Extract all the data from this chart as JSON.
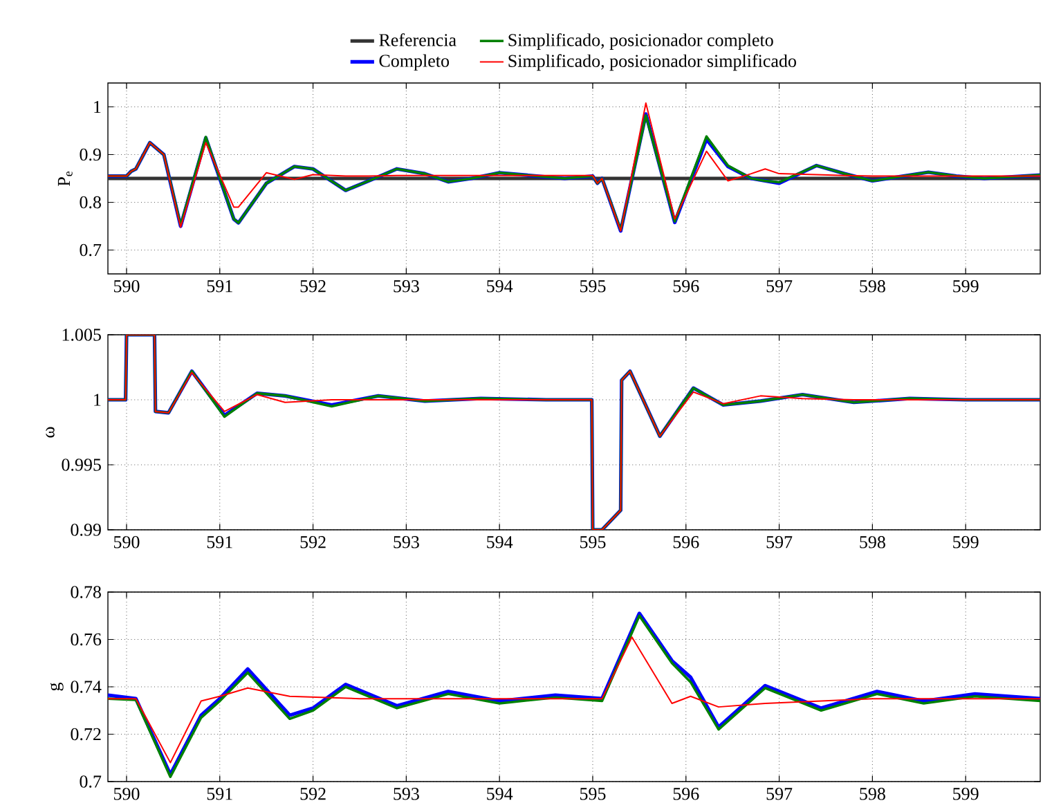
{
  "chart_data": [
    {
      "type": "line",
      "ylabel": "P$_{e}$",
      "xlim": [
        589.8,
        599.8
      ],
      "ylim": [
        0.65,
        1.05
      ],
      "xticks": [
        590,
        591,
        592,
        593,
        594,
        595,
        596,
        597,
        598,
        599
      ],
      "yticks": [
        0.7,
        0.8,
        0.9,
        1
      ],
      "grid": true,
      "legend": "top",
      "x": [
        589.8,
        590.0,
        590.05,
        590.1,
        590.25,
        590.4,
        590.58,
        590.85,
        591.15,
        591.2,
        591.5,
        591.8,
        592.0,
        592.35,
        592.6,
        592.9,
        593.2,
        593.45,
        593.7,
        594.0,
        594.4,
        594.7,
        595.0,
        595.05,
        595.1,
        595.3,
        595.57,
        595.88,
        596.22,
        596.45,
        596.7,
        596.85,
        597.0,
        597.4,
        597.7,
        598.0,
        598.6,
        598.9,
        599.2,
        599.8
      ],
      "series": [
        {
          "name": "Referencia",
          "color": "#333333",
          "x": [
            589.8,
            599.8
          ],
          "values": [
            0.85,
            0.85
          ]
        },
        {
          "name": "Completo",
          "color": "#0000ff",
          "values": [
            0.855,
            0.855,
            0.865,
            0.87,
            0.925,
            0.9,
            0.75,
            0.935,
            0.765,
            0.757,
            0.84,
            0.875,
            0.87,
            0.825,
            0.845,
            0.87,
            0.86,
            0.843,
            0.85,
            0.862,
            0.855,
            0.85,
            0.855,
            0.84,
            0.85,
            0.74,
            0.985,
            0.758,
            0.932,
            0.875,
            0.85,
            0.845,
            0.84,
            0.877,
            0.86,
            0.845,
            0.863,
            0.855,
            0.85,
            0.857
          ]
        },
        {
          "name": "Simplificado, posicionador completo",
          "color": "#008000",
          "values": [
            0.855,
            0.855,
            0.865,
            0.87,
            0.925,
            0.9,
            0.752,
            0.937,
            0.765,
            0.757,
            0.84,
            0.875,
            0.87,
            0.825,
            0.845,
            0.87,
            0.86,
            0.843,
            0.85,
            0.862,
            0.855,
            0.85,
            0.855,
            0.84,
            0.85,
            0.742,
            0.982,
            0.76,
            0.938,
            0.877,
            0.85,
            0.845,
            0.842,
            0.877,
            0.86,
            0.845,
            0.863,
            0.855,
            0.85,
            0.857
          ]
        },
        {
          "name": "Simplificado, posicionador simplificado",
          "color": "#ff0000",
          "values": [
            0.855,
            0.855,
            0.865,
            0.87,
            0.925,
            0.9,
            0.748,
            0.925,
            0.79,
            0.79,
            0.862,
            0.848,
            0.858,
            0.855,
            0.855,
            0.856,
            0.856,
            0.856,
            0.856,
            0.856,
            0.856,
            0.856,
            0.856,
            0.84,
            0.85,
            0.74,
            1.008,
            0.765,
            0.907,
            0.845,
            0.86,
            0.87,
            0.86,
            0.858,
            0.856,
            0.855,
            0.855,
            0.855,
            0.855,
            0.855
          ]
        }
      ]
    },
    {
      "type": "line",
      "ylabel": "ω",
      "xlim": [
        589.8,
        599.8
      ],
      "ylim": [
        0.99,
        1.005
      ],
      "xticks": [
        590,
        591,
        592,
        593,
        594,
        595,
        596,
        597,
        598,
        599
      ],
      "yticks": [
        0.99,
        0.995,
        1,
        1.005
      ],
      "grid": true,
      "x": [
        589.8,
        589.99,
        590.0,
        590.3,
        590.31,
        590.45,
        590.7,
        591.05,
        591.4,
        591.7,
        592.2,
        592.7,
        593.2,
        593.8,
        594.5,
        594.99,
        595.0,
        595.1,
        595.3,
        595.31,
        595.4,
        595.72,
        596.08,
        596.4,
        596.8,
        597.25,
        597.8,
        598.4,
        599.0,
        599.8
      ],
      "series": [
        {
          "color": "#0000ff",
          "values": [
            1.0,
            1.0,
            1.005,
            1.005,
            0.9991,
            0.999,
            1.0022,
            0.9988,
            1.0005,
            1.0003,
            0.9996,
            1.0003,
            0.9999,
            1.0001,
            1.0,
            1.0,
            0.99,
            0.99,
            0.9915,
            1.0015,
            1.0022,
            0.9972,
            1.0009,
            0.9996,
            0.9999,
            1.0004,
            0.9998,
            1.0001,
            1.0,
            1.0
          ]
        },
        {
          "color": "#008000",
          "values": [
            1.0,
            1.0,
            1.005,
            1.005,
            0.9991,
            0.999,
            1.0022,
            0.9987,
            1.0005,
            1.0003,
            0.9995,
            1.0003,
            0.9999,
            1.0001,
            1.0,
            1.0,
            0.99,
            0.99,
            0.9915,
            1.0015,
            1.0022,
            0.9972,
            1.0009,
            0.9996,
            0.9999,
            1.0004,
            0.9998,
            1.0001,
            1.0,
            1.0
          ]
        },
        {
          "color": "#ff0000",
          "values": [
            1.0,
            1.0,
            1.005,
            1.005,
            0.9991,
            0.999,
            1.0021,
            0.9991,
            1.0004,
            0.9998,
            1.0,
            1.0,
            1.0,
            1.0,
            1.0,
            1.0,
            0.99,
            0.99,
            0.9915,
            1.0015,
            1.0022,
            0.9972,
            1.0006,
            0.9997,
            1.0003,
            1.0001,
            1.0,
            1.0,
            1.0,
            1.0
          ]
        }
      ]
    },
    {
      "type": "line",
      "ylabel": "g",
      "xlim": [
        589.8,
        599.8
      ],
      "ylim": [
        0.7,
        0.78
      ],
      "xticks": [
        590,
        591,
        592,
        593,
        594,
        595,
        596,
        597,
        598,
        599
      ],
      "yticks": [
        0.7,
        0.72,
        0.74,
        0.76,
        0.78
      ],
      "grid": true,
      "x": [
        589.8,
        590.1,
        590.47,
        590.8,
        591.0,
        591.3,
        591.75,
        592.0,
        592.35,
        592.9,
        593.45,
        594.0,
        594.6,
        595.1,
        595.5,
        595.85,
        596.05,
        596.35,
        596.85,
        597.45,
        598.05,
        598.55,
        599.1,
        599.8
      ],
      "series": [
        {
          "color": "#0000ff",
          "values": [
            0.7365,
            0.735,
            0.703,
            0.728,
            0.735,
            0.7475,
            0.728,
            0.731,
            0.741,
            0.732,
            0.738,
            0.734,
            0.7365,
            0.735,
            0.771,
            0.751,
            0.744,
            0.723,
            0.7405,
            0.731,
            0.738,
            0.734,
            0.737,
            0.735
          ]
        },
        {
          "color": "#008000",
          "values": [
            0.735,
            0.7345,
            0.702,
            0.727,
            0.734,
            0.746,
            0.7265,
            0.73,
            0.74,
            0.731,
            0.737,
            0.733,
            0.7355,
            0.734,
            0.77,
            0.75,
            0.742,
            0.722,
            0.7395,
            0.73,
            0.737,
            0.733,
            0.736,
            0.734
          ]
        },
        {
          "color": "#ff0000",
          "x": [
            589.8,
            590.1,
            590.47,
            590.8,
            591.0,
            591.3,
            591.75,
            592.5,
            593.5,
            594.5,
            595.1,
            595.42,
            595.85,
            596.05,
            596.35,
            596.85,
            597.45,
            598.0,
            599.0,
            599.8
          ],
          "values": [
            0.735,
            0.735,
            0.708,
            0.734,
            0.736,
            0.7395,
            0.736,
            0.735,
            0.735,
            0.735,
            0.735,
            0.761,
            0.733,
            0.736,
            0.7315,
            0.733,
            0.734,
            0.735,
            0.735,
            0.735
          ]
        }
      ]
    }
  ]
}
